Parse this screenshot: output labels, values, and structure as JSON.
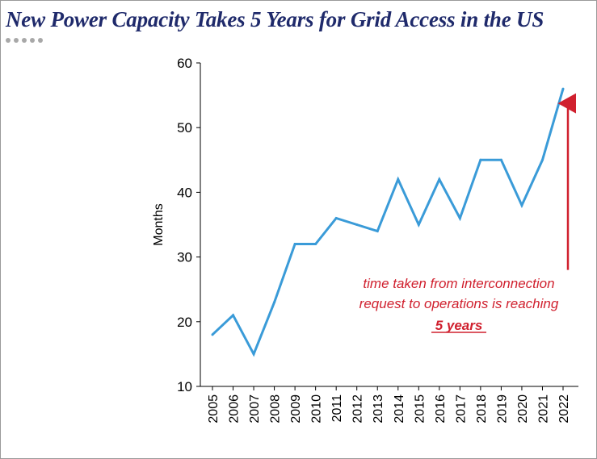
{
  "header": {
    "title": "New Power Capacity Takes 5 Years for Grid Access in the US"
  },
  "colors": {
    "title": "#1f2a6b",
    "line": "#3a9bd8",
    "annotation": "#d0202e",
    "axis": "#000000"
  },
  "chart_data": {
    "type": "line",
    "ylabel": "Months",
    "ylim": [
      10,
      60
    ],
    "yticks": [
      10,
      20,
      30,
      40,
      50,
      60
    ],
    "x": [
      "2005",
      "2006",
      "2007",
      "2008",
      "2009",
      "2010",
      "2011",
      "2012",
      "2013",
      "2014",
      "2015",
      "2016",
      "2017",
      "2018",
      "2019",
      "2020",
      "2021",
      "2022"
    ],
    "series": [
      {
        "values": [
          18,
          21,
          15,
          23,
          32,
          32,
          36,
          35,
          34,
          42,
          35,
          42,
          36,
          45,
          45,
          38,
          45,
          56
        ]
      }
    ],
    "annotation": {
      "line1": "time taken from interconnection",
      "line2": "request to operations is reaching",
      "emphasis": "5 years"
    },
    "arrow": {
      "from": 28,
      "to": 55
    }
  }
}
